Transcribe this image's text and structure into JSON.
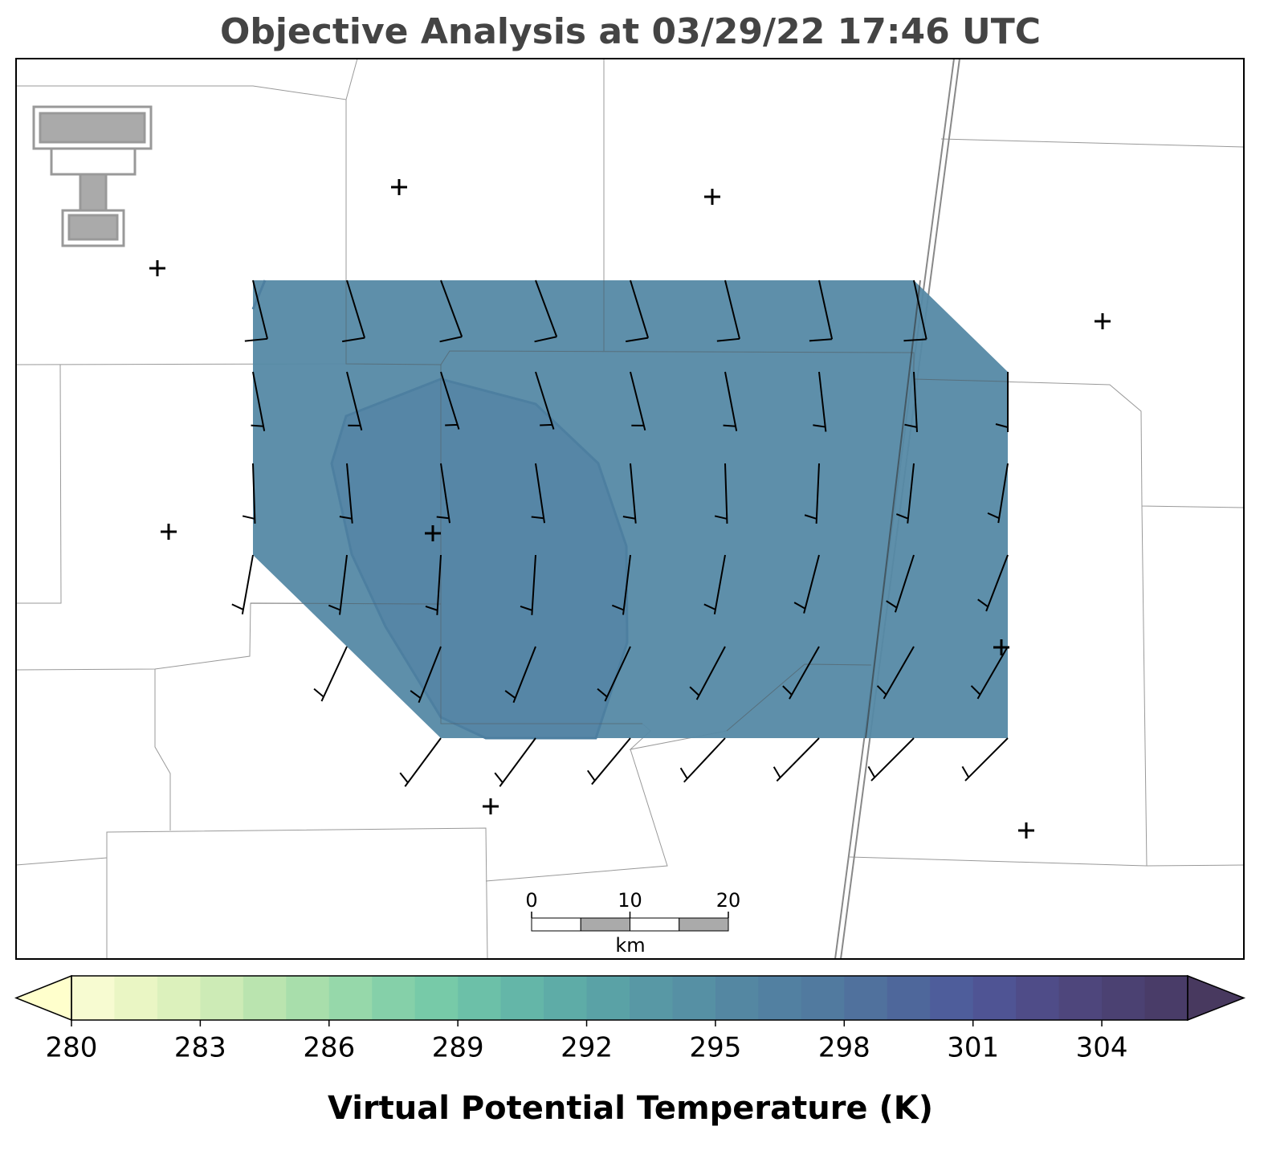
{
  "title": "Objective Analysis at 03/29/22 17:46 UTC",
  "scale_bar": {
    "ticks": [
      0,
      10,
      20
    ],
    "unit": "km"
  },
  "colorbar": {
    "label": "Virtual Potential Temperature (K)",
    "clim": [
      280,
      306
    ],
    "ticks": [
      280,
      283,
      286,
      289,
      292,
      295,
      298,
      301,
      304
    ],
    "colors": [
      "#f7fbd1",
      "#eaf6c4",
      "#dcf1bc",
      "#cdebb6",
      "#bae4af",
      "#a8deab",
      "#96d8aa",
      "#85d0a9",
      "#77caa8",
      "#6cc0a8",
      "#64b6a8",
      "#5eaca7",
      "#5aa2a6",
      "#5898a5",
      "#5690a4",
      "#5487a2",
      "#5280a1",
      "#517a9f",
      "#50719d",
      "#4e679b",
      "#4e5d9b",
      "#4f5494",
      "#4f4c88",
      "#4e467c",
      "#4b4172",
      "#493c68"
    ],
    "under_color": "#ffffcc",
    "over_color": "#48395f"
  }
}
